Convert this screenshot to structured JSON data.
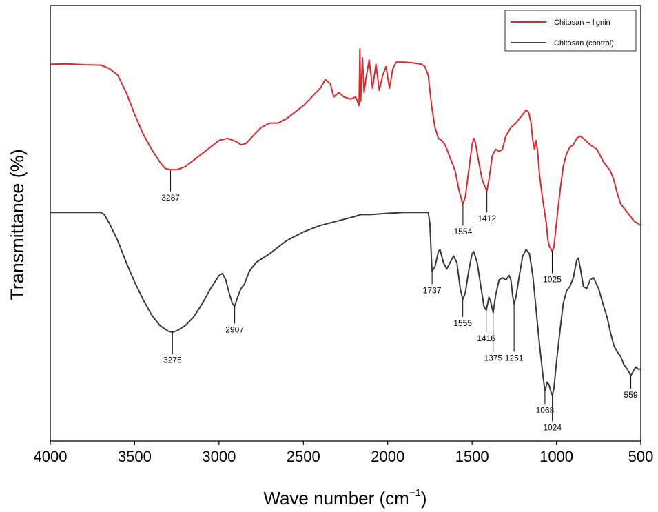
{
  "chart_data": {
    "type": "line",
    "title": "",
    "xlabel": "Wave number (cm",
    "xlabel_sup": "−1",
    "xlabel_end": ")",
    "ylabel": "Transmittance (%)",
    "xlim": [
      4000,
      500
    ],
    "ylim": [
      0,
      100
    ],
    "x_ticks": [
      4000,
      3500,
      3000,
      2500,
      2000,
      1500,
      1000,
      500
    ],
    "y_ticks_shown": false,
    "legend_position": "top-right",
    "series": [
      {
        "name": "Chitosan + lignin",
        "color": "#e0262b",
        "points": [
          [
            4000,
            86.5
          ],
          [
            3900,
            86.6
          ],
          [
            3800,
            86.4
          ],
          [
            3700,
            86.3
          ],
          [
            3650,
            85.5
          ],
          [
            3600,
            84.0
          ],
          [
            3550,
            80.0
          ],
          [
            3500,
            75.0
          ],
          [
            3450,
            70.5
          ],
          [
            3400,
            67.0
          ],
          [
            3350,
            64.0
          ],
          [
            3320,
            62.6
          ],
          [
            3287,
            62.3
          ],
          [
            3250,
            62.3
          ],
          [
            3200,
            63.0
          ],
          [
            3150,
            64.5
          ],
          [
            3100,
            66.0
          ],
          [
            3050,
            67.5
          ],
          [
            3000,
            69.0
          ],
          [
            2950,
            69.5
          ],
          [
            2900,
            68.8
          ],
          [
            2870,
            68.0
          ],
          [
            2840,
            68.3
          ],
          [
            2800,
            70.0
          ],
          [
            2750,
            72.0
          ],
          [
            2700,
            73.0
          ],
          [
            2650,
            73.0
          ],
          [
            2600,
            74.0
          ],
          [
            2550,
            75.5
          ],
          [
            2500,
            77.0
          ],
          [
            2450,
            79.0
          ],
          [
            2400,
            81.0
          ],
          [
            2370,
            83.0
          ],
          [
            2340,
            82.0
          ],
          [
            2320,
            79.0
          ],
          [
            2290,
            80.0
          ],
          [
            2260,
            79.0
          ],
          [
            2220,
            78.5
          ],
          [
            2190,
            79.0
          ],
          [
            2170,
            77.0
          ],
          [
            2165,
            90.0
          ],
          [
            2160,
            78.0
          ],
          [
            2150,
            88.0
          ],
          [
            2140,
            80.0
          ],
          [
            2130,
            83.0
          ],
          [
            2110,
            87.5
          ],
          [
            2090,
            81.0
          ],
          [
            2070,
            86.5
          ],
          [
            2050,
            80.5
          ],
          [
            2030,
            84.0
          ],
          [
            2010,
            86.0
          ],
          [
            1990,
            81.0
          ],
          [
            1970,
            85.5
          ],
          [
            1950,
            87.0
          ],
          [
            1900,
            87.0
          ],
          [
            1850,
            86.8
          ],
          [
            1800,
            86.5
          ],
          [
            1780,
            86.0
          ],
          [
            1760,
            84.0
          ],
          [
            1740,
            77.0
          ],
          [
            1720,
            72.0
          ],
          [
            1700,
            69.5
          ],
          [
            1680,
            69.0
          ],
          [
            1660,
            68.0
          ],
          [
            1640,
            66.0
          ],
          [
            1620,
            64.0
          ],
          [
            1600,
            62.0
          ],
          [
            1580,
            58.0
          ],
          [
            1560,
            55.0
          ],
          [
            1554,
            54.5
          ],
          [
            1540,
            56.0
          ],
          [
            1520,
            62.0
          ],
          [
            1500,
            68.0
          ],
          [
            1490,
            69.5
          ],
          [
            1480,
            68.5
          ],
          [
            1460,
            64.0
          ],
          [
            1440,
            60.0
          ],
          [
            1425,
            58.5
          ],
          [
            1412,
            57.5
          ],
          [
            1400,
            60.0
          ],
          [
            1380,
            65.5
          ],
          [
            1360,
            67.0
          ],
          [
            1340,
            66.5
          ],
          [
            1320,
            67.0
          ],
          [
            1300,
            70.0
          ],
          [
            1270,
            72.0
          ],
          [
            1240,
            73.0
          ],
          [
            1220,
            74.0
          ],
          [
            1200,
            75.0
          ],
          [
            1180,
            76.0
          ],
          [
            1165,
            75.5
          ],
          [
            1150,
            73.0
          ],
          [
            1140,
            69.0
          ],
          [
            1130,
            67.0
          ],
          [
            1120,
            69.0
          ],
          [
            1110,
            66.0
          ],
          [
            1100,
            61.0
          ],
          [
            1080,
            55.0
          ],
          [
            1060,
            50.0
          ],
          [
            1050,
            46.0
          ],
          [
            1040,
            44.5
          ],
          [
            1030,
            44.0
          ],
          [
            1025,
            43.5
          ],
          [
            1015,
            44.5
          ],
          [
            1000,
            50.0
          ],
          [
            980,
            57.0
          ],
          [
            960,
            63.0
          ],
          [
            940,
            66.0
          ],
          [
            920,
            67.5
          ],
          [
            900,
            68.0
          ],
          [
            880,
            69.5
          ],
          [
            860,
            70.0
          ],
          [
            840,
            69.5
          ],
          [
            800,
            68.0
          ],
          [
            760,
            67.0
          ],
          [
            720,
            64.0
          ],
          [
            680,
            62.0
          ],
          [
            660,
            60.0
          ],
          [
            640,
            57.0
          ],
          [
            620,
            54.5
          ],
          [
            600,
            53.5
          ],
          [
            580,
            52.5
          ],
          [
            560,
            51.5
          ],
          [
            540,
            50.5
          ],
          [
            520,
            50.0
          ],
          [
            500,
            49.5
          ]
        ],
        "peak_labels": [
          "3287",
          "1554",
          "1412",
          "1025"
        ]
      },
      {
        "name": "Chitosan (control)",
        "color": "#3a3a3a",
        "points": [
          [
            4000,
            52.5
          ],
          [
            3900,
            52.5
          ],
          [
            3800,
            52.5
          ],
          [
            3700,
            52.5
          ],
          [
            3680,
            52.0
          ],
          [
            3650,
            50.0
          ],
          [
            3600,
            46.0
          ],
          [
            3550,
            41.0
          ],
          [
            3500,
            36.5
          ],
          [
            3450,
            32.5
          ],
          [
            3400,
            29.0
          ],
          [
            3350,
            26.5
          ],
          [
            3300,
            25.2
          ],
          [
            3276,
            25.0
          ],
          [
            3250,
            25.3
          ],
          [
            3200,
            26.5
          ],
          [
            3150,
            28.5
          ],
          [
            3100,
            31.5
          ],
          [
            3050,
            35.0
          ],
          [
            3000,
            38.0
          ],
          [
            2980,
            38.5
          ],
          [
            2960,
            37.0
          ],
          [
            2940,
            34.0
          ],
          [
            2920,
            31.5
          ],
          [
            2907,
            31.0
          ],
          [
            2890,
            33.0
          ],
          [
            2870,
            35.0
          ],
          [
            2850,
            36.0
          ],
          [
            2820,
            39.0
          ],
          [
            2780,
            41.0
          ],
          [
            2700,
            43.0
          ],
          [
            2600,
            46.0
          ],
          [
            2500,
            48.0
          ],
          [
            2400,
            49.5
          ],
          [
            2300,
            50.5
          ],
          [
            2250,
            51.0
          ],
          [
            2200,
            51.5
          ],
          [
            2160,
            52.0
          ],
          [
            2100,
            52.0
          ],
          [
            2000,
            52.3
          ],
          [
            1900,
            52.5
          ],
          [
            1800,
            52.5
          ],
          [
            1760,
            52.5
          ],
          [
            1750,
            50.0
          ],
          [
            1740,
            41.0
          ],
          [
            1737,
            39.0
          ],
          [
            1720,
            40.0
          ],
          [
            1700,
            43.5
          ],
          [
            1690,
            44.0
          ],
          [
            1670,
            41.0
          ],
          [
            1650,
            39.5
          ],
          [
            1630,
            41.0
          ],
          [
            1610,
            42.5
          ],
          [
            1590,
            41.0
          ],
          [
            1570,
            35.0
          ],
          [
            1555,
            32.5
          ],
          [
            1540,
            34.0
          ],
          [
            1520,
            39.0
          ],
          [
            1500,
            43.0
          ],
          [
            1490,
            43.5
          ],
          [
            1470,
            41.0
          ],
          [
            1450,
            36.0
          ],
          [
            1430,
            31.0
          ],
          [
            1416,
            30.0
          ],
          [
            1400,
            33.0
          ],
          [
            1390,
            32.0
          ],
          [
            1375,
            29.5
          ],
          [
            1360,
            33.5
          ],
          [
            1340,
            37.0
          ],
          [
            1320,
            37.5
          ],
          [
            1300,
            37.0
          ],
          [
            1280,
            38.0
          ],
          [
            1270,
            37.0
          ],
          [
            1260,
            33.5
          ],
          [
            1251,
            31.5
          ],
          [
            1240,
            33.0
          ],
          [
            1220,
            38.0
          ],
          [
            1200,
            42.5
          ],
          [
            1180,
            44.0
          ],
          [
            1160,
            43.0
          ],
          [
            1140,
            38.0
          ],
          [
            1120,
            30.0
          ],
          [
            1100,
            22.0
          ],
          [
            1080,
            15.0
          ],
          [
            1068,
            11.5
          ],
          [
            1055,
            13.5
          ],
          [
            1045,
            13.0
          ],
          [
            1030,
            11.0
          ],
          [
            1024,
            10.5
          ],
          [
            1015,
            12.0
          ],
          [
            1000,
            18.0
          ],
          [
            980,
            25.0
          ],
          [
            960,
            31.5
          ],
          [
            940,
            34.5
          ],
          [
            920,
            35.5
          ],
          [
            900,
            37.5
          ],
          [
            880,
            41.5
          ],
          [
            870,
            42.0
          ],
          [
            860,
            40.0
          ],
          [
            840,
            35.5
          ],
          [
            820,
            35.0
          ],
          [
            800,
            37.0
          ],
          [
            780,
            37.5
          ],
          [
            750,
            35.0
          ],
          [
            720,
            31.0
          ],
          [
            700,
            28.5
          ],
          [
            680,
            25.0
          ],
          [
            660,
            22.0
          ],
          [
            640,
            20.5
          ],
          [
            620,
            19.5
          ],
          [
            600,
            17.5
          ],
          [
            580,
            16.5
          ],
          [
            559,
            15.0
          ],
          [
            545,
            16.0
          ],
          [
            530,
            17.0
          ],
          [
            515,
            16.5
          ],
          [
            500,
            16.5
          ]
        ],
        "peak_labels": [
          "3276",
          "2907",
          "1737",
          "1555",
          "1416",
          "1375",
          "1251",
          "1068",
          "1024",
          "559"
        ]
      }
    ],
    "annotations": [
      {
        "text": "3287",
        "series": 0,
        "x": 3287,
        "label_below": 5
      },
      {
        "text": "1554",
        "series": 0,
        "x": 1554,
        "label_below": 5
      },
      {
        "text": "1412",
        "series": 0,
        "x": 1412,
        "label_below": 5
      },
      {
        "text": "1025",
        "series": 0,
        "x": 1025,
        "label_below": 5
      },
      {
        "text": "3276",
        "series": 1,
        "x": 3276,
        "label_below": 5
      },
      {
        "text": "2907",
        "series": 1,
        "x": 2907,
        "label_below": 4
      },
      {
        "text": "1737",
        "series": 1,
        "x": 1737,
        "label_below": 3
      },
      {
        "text": "1555",
        "series": 1,
        "x": 1555,
        "label_below": 4
      },
      {
        "text": "1416",
        "series": 1,
        "x": 1416,
        "label_below": 5
      },
      {
        "text": "1375",
        "series": 1,
        "x": 1375,
        "label_below": 9
      },
      {
        "text": "1251",
        "series": 1,
        "x": 1251,
        "label_below": 11
      },
      {
        "text": "1068",
        "series": 1,
        "x": 1068,
        "label_below": 3
      },
      {
        "text": "1024",
        "series": 1,
        "x": 1024,
        "label_below": 6
      },
      {
        "text": "559",
        "series": 1,
        "x": 559,
        "label_below": 3
      }
    ]
  }
}
